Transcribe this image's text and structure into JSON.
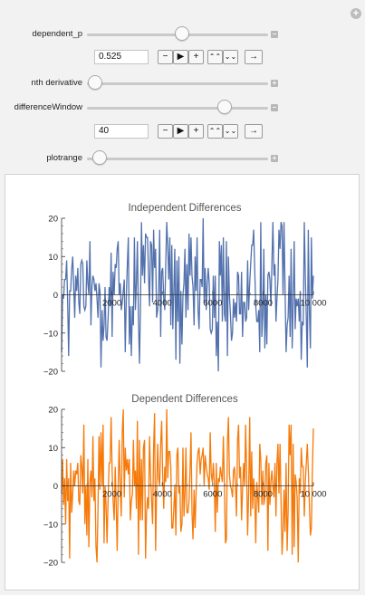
{
  "controls": {
    "dependent_p": {
      "label": "dependent_p",
      "value": "0.525",
      "slider_fraction": 0.52
    },
    "nth_derivative": {
      "label": "nth derivative",
      "slider_fraction": 0.0
    },
    "differenceWindow": {
      "label": "differenceWindow",
      "value": "40",
      "slider_fraction": 0.72
    },
    "plotrange": {
      "label": "plotrange",
      "slider_fraction": 0.02
    },
    "buttons": {
      "minus": "−",
      "play": "▶",
      "plus": "+",
      "faster": "⌃⌃",
      "slower": "⌄⌄",
      "direction": "→"
    },
    "toggles": {
      "open": "−",
      "closed": "+"
    },
    "corner_icon": "+"
  },
  "colors": {
    "independent": "#5271ad",
    "dependent": "#f57a0a"
  },
  "chart_data": [
    {
      "type": "line",
      "title": "Independent Differences",
      "color": "#5271ad",
      "xlim": [
        0,
        10000
      ],
      "ylim": [
        -20,
        20
      ],
      "x_ticks": [
        "2000",
        "4000",
        "6000",
        "8000",
        "10 000"
      ],
      "y_ticks": [
        "20",
        "10",
        "0",
        "−10",
        "−20"
      ],
      "n_points": 250,
      "approx_value_range": [
        -20,
        20
      ]
    },
    {
      "type": "line",
      "title": "Dependent Differences",
      "color": "#f57a0a",
      "xlim": [
        0,
        10000
      ],
      "ylim": [
        -20,
        20
      ],
      "x_ticks": [
        "2000",
        "4000",
        "6000",
        "8000",
        "10 000"
      ],
      "y_ticks": [
        "20",
        "10",
        "0",
        "−10",
        "−20"
      ],
      "n_points": 250,
      "approx_value_range": [
        -20,
        20
      ]
    }
  ]
}
